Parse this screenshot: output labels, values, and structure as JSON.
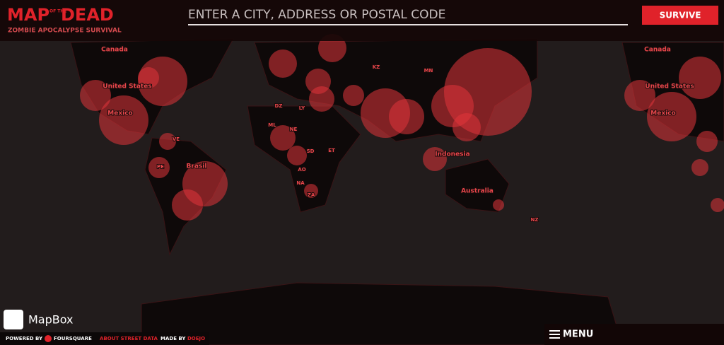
{
  "header": {
    "logo_map": "MAP",
    "logo_of_the": "OF THE",
    "logo_dead": "DEAD",
    "tagline": "ZOMBIE APOCALYPSE SURVIVAL",
    "search_placeholder": "ENTER A CITY, ADDRESS OR POSTAL CODE",
    "button": "SURVIVE"
  },
  "map": {
    "labels": [
      "Canada",
      "United States",
      "Mexico",
      "Brasil",
      "Indonesia",
      "Australia",
      "NZ",
      "KZ",
      "MN",
      "DZ",
      "LY",
      "ML",
      "NE",
      "SD",
      "ET",
      "AO",
      "NA",
      "ZA",
      "VE",
      "PE",
      "Canada",
      "United States",
      "Mexico"
    ]
  },
  "footer": {
    "brand": "MapBox",
    "powered_by": "POWERED BY",
    "foursquare": "FOURSQUARE",
    "about": "ABOUT STREET DATA",
    "made_by": "MADE BY",
    "doejo": "DOEJO",
    "menu": "MENU"
  }
}
